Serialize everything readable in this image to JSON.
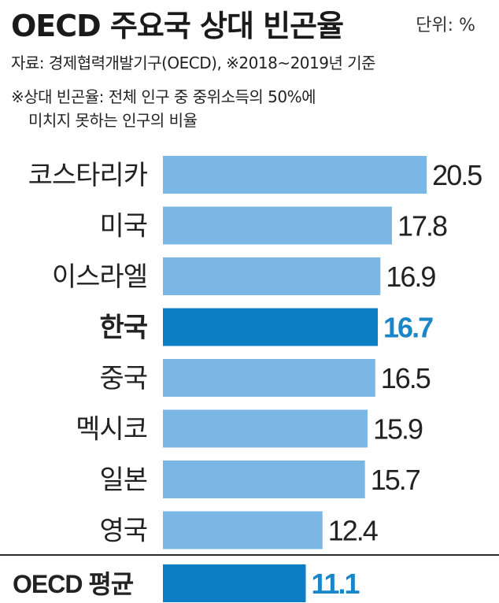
{
  "header": {
    "title": "OECD 주요국 상대 빈곤율",
    "unit": "단위: %",
    "source": "자료: 경제협력개발기구(OECD), ※2018~2019년 기준",
    "note_line1": "※상대 빈곤율: 전체 인구 중 중위소득의 50%에",
    "note_line2": "미치지 못하는 인구의 비율"
  },
  "colors": {
    "bar": "#7ab7e4",
    "highlight": "#0b7ec4",
    "highlight_label": "#1a86c8",
    "text": "#222222",
    "divider": "#2b2b2b"
  },
  "chart_data": {
    "type": "bar",
    "orientation": "horizontal",
    "categories": [
      "코스타리카",
      "미국",
      "이스라엘",
      "한국",
      "중국",
      "멕시코",
      "일본",
      "영국"
    ],
    "values": [
      20.5,
      17.8,
      16.9,
      16.7,
      16.5,
      15.9,
      15.7,
      12.4
    ],
    "highlight": [
      "한국"
    ],
    "average": {
      "label": "OECD 평균",
      "value": 11.1
    },
    "value_labels": [
      "20.5",
      "17.8",
      "16.9",
      "16.7",
      "16.5",
      "15.9",
      "15.7",
      "12.4"
    ],
    "average_value_label": "11.1"
  }
}
